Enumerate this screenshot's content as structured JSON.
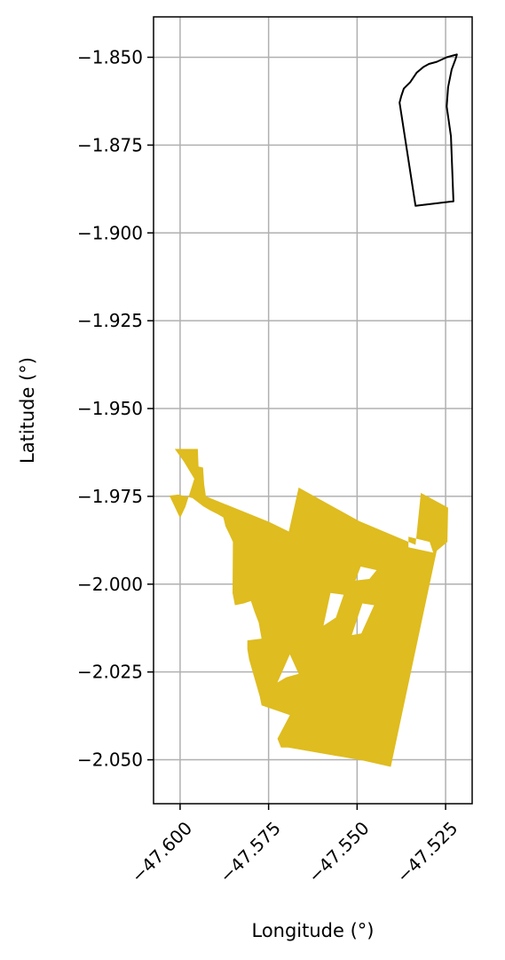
{
  "chart_data": {
    "type": "map",
    "xlabel": "Longitude (°)",
    "ylabel": "Latitude (°)",
    "xlim": [
      -47.6075,
      -47.5175
    ],
    "ylim": [
      -2.0625,
      -1.8385
    ],
    "grid": true,
    "xticks": [
      -47.6,
      -47.575,
      -47.55,
      -47.525
    ],
    "yticks": [
      -1.85,
      -1.875,
      -1.9,
      -1.925,
      -1.95,
      -1.975,
      -2.0,
      -2.025,
      -2.05
    ],
    "xtick_labels": [
      "−47.600",
      "−47.575",
      "−47.550",
      "−47.525"
    ],
    "ytick_labels": [
      "−1.850",
      "−1.875",
      "−1.900",
      "−1.925",
      "−1.950",
      "−1.975",
      "−2.000",
      "−2.025",
      "−2.050"
    ],
    "layers": [
      {
        "kind": "outline",
        "color": "#000000",
        "rings": [
          [
            [
              -47.5218,
              -1.8492
            ],
            [
              -47.5247,
              -1.85
            ],
            [
              -47.5275,
              -1.8513
            ],
            [
              -47.5297,
              -1.8519
            ],
            [
              -47.5312,
              -1.8527
            ],
            [
              -47.5332,
              -1.8544
            ],
            [
              -47.535,
              -1.8571
            ],
            [
              -47.5368,
              -1.8589
            ],
            [
              -47.5375,
              -1.861
            ],
            [
              -47.538,
              -1.8629
            ],
            [
              -47.5335,
              -1.8923
            ],
            [
              -47.5228,
              -1.891
            ],
            [
              -47.5235,
              -1.8725
            ],
            [
              -47.5247,
              -1.864
            ],
            [
              -47.5243,
              -1.8585
            ],
            [
              -47.5233,
              -1.8535
            ],
            [
              -47.5222,
              -1.8505
            ],
            [
              -47.5218,
              -1.8492
            ]
          ]
        ]
      },
      {
        "kind": "fill",
        "color": "#dfbc1f",
        "rings": [
          [
            [
              -47.6015,
              -1.9615
            ],
            [
              -47.595,
              -1.9615
            ],
            [
              -47.5948,
              -1.9665
            ],
            [
              -47.5935,
              -1.9668
            ],
            [
              -47.5932,
              -1.9715
            ],
            [
              -47.5927,
              -1.975
            ],
            [
              -47.5748,
              -1.9823
            ],
            [
              -47.5693,
              -1.985
            ],
            [
              -47.5665,
              -1.9725
            ],
            [
              -47.5495,
              -1.982
            ],
            [
              -47.5335,
              -1.9888
            ],
            [
              -47.532,
              -1.974
            ],
            [
              -47.5243,
              -1.9782
            ],
            [
              -47.5245,
              -1.988
            ],
            [
              -47.5275,
              -1.9905
            ],
            [
              -47.5405,
              -2.052
            ],
            [
              -47.5485,
              -2.0502
            ],
            [
              -47.5695,
              -2.0465
            ],
            [
              -47.5715,
              -2.0465
            ],
            [
              -47.5725,
              -2.044
            ],
            [
              -47.569,
              -2.0373
            ],
            [
              -47.577,
              -2.0345
            ],
            [
              -47.5775,
              -2.032
            ],
            [
              -47.5805,
              -2.0215
            ],
            [
              -47.581,
              -2.0185
            ],
            [
              -47.581,
              -2.016
            ],
            [
              -47.577,
              -2.0155
            ],
            [
              -47.5778,
              -2.011
            ],
            [
              -47.579,
              -2.0078
            ],
            [
              -47.58,
              -2.0048
            ],
            [
              -47.582,
              -2.0055
            ],
            [
              -47.5845,
              -2.006
            ],
            [
              -47.5852,
              -2.0025
            ],
            [
              -47.5851,
              -1.988
            ],
            [
              -47.586,
              -1.986
            ],
            [
              -47.5872,
              -1.9835
            ],
            [
              -47.5878,
              -1.981
            ],
            [
              -47.5895,
              -1.98
            ],
            [
              -47.5915,
              -1.979
            ],
            [
              -47.5935,
              -1.9778
            ],
            [
              -47.5965,
              -1.9755
            ],
            [
              -47.6005,
              -1.9745
            ],
            [
              -47.603,
              -1.9748
            ],
            [
              -47.6,
              -1.9812
            ],
            [
              -47.5985,
              -1.978
            ],
            [
              -47.596,
              -1.97
            ],
            [
              -47.599,
              -1.965
            ],
            [
              -47.6015,
              -1.9615
            ]
          ]
        ],
        "holes": [
          [
            [
              -47.5505,
              -1.999
            ],
            [
              -47.5465,
              -1.9985
            ],
            [
              -47.5445,
              -1.996
            ],
            [
              -47.549,
              -1.995
            ],
            [
              -47.5505,
              -1.999
            ]
          ],
          [
            [
              -47.5595,
              -2.0118
            ],
            [
              -47.556,
              -2.0095
            ],
            [
              -47.5538,
              -2.003
            ],
            [
              -47.5575,
              -2.0025
            ],
            [
              -47.5595,
              -2.0118
            ]
          ],
          [
            [
              -47.5515,
              -2.0145
            ],
            [
              -47.5488,
              -2.014
            ],
            [
              -47.5452,
              -2.006
            ],
            [
              -47.5485,
              -2.0055
            ],
            [
              -47.5515,
              -2.0145
            ]
          ],
          [
            [
              -47.5725,
              -2.028
            ],
            [
              -47.57,
              -2.0265
            ],
            [
              -47.5665,
              -2.0255
            ],
            [
              -47.569,
              -2.02
            ],
            [
              -47.5725,
              -2.028
            ]
          ],
          [
            [
              -47.5355,
              -1.9865
            ],
            [
              -47.5295,
              -1.988
            ],
            [
              -47.5285,
              -1.991
            ],
            [
              -47.5355,
              -1.9895
            ],
            [
              -47.5355,
              -1.9865
            ]
          ]
        ]
      }
    ]
  }
}
